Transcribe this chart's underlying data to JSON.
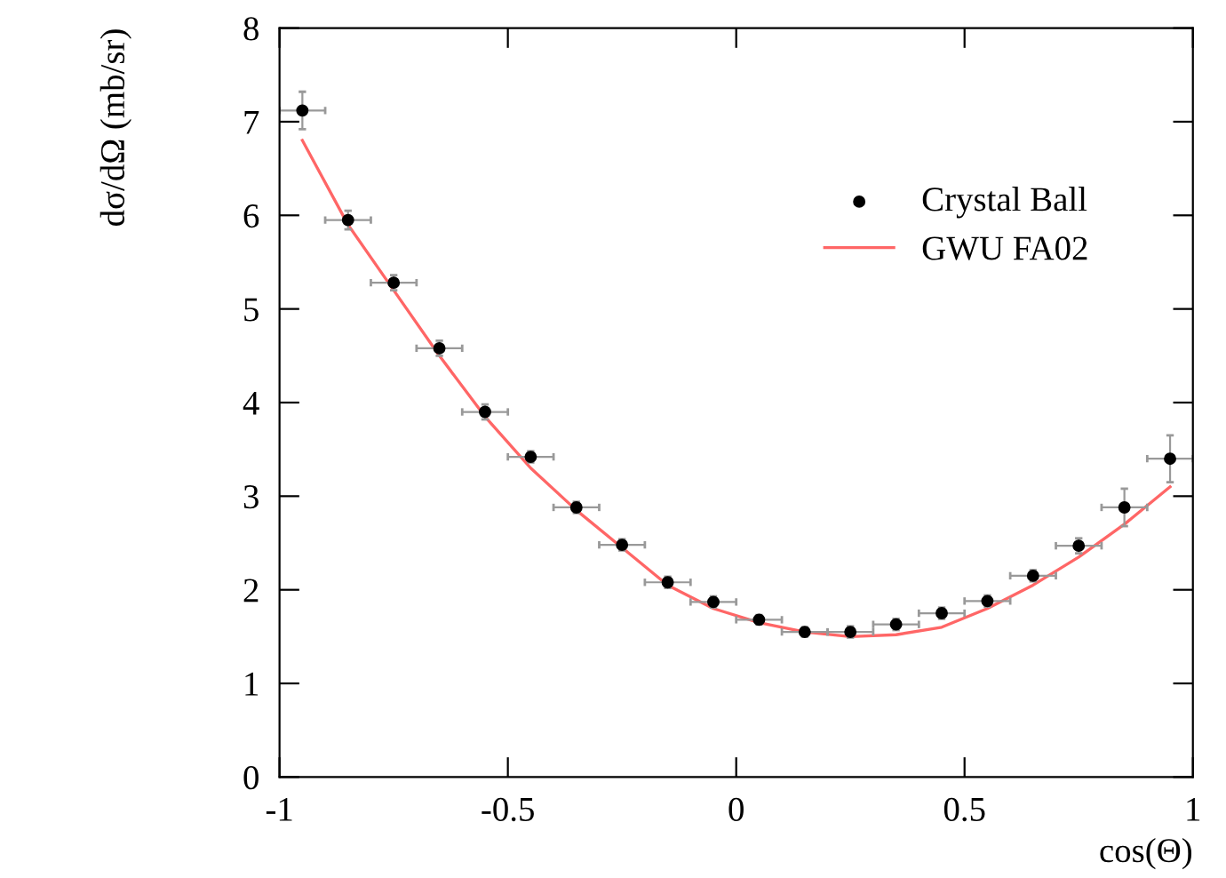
{
  "chart_data": {
    "type": "scatter",
    "xlabel": "cos(Θ)",
    "ylabel": "dσ/dΩ (mb/sr)",
    "xlim": [
      -1,
      1
    ],
    "ylim": [
      0,
      8
    ],
    "xticks": [
      -1,
      -0.5,
      0,
      0.5,
      1
    ],
    "yticks": [
      0,
      1,
      2,
      3,
      4,
      5,
      6,
      7,
      8
    ],
    "grid": false,
    "legend": "top right",
    "x": [
      -0.95,
      -0.85,
      -0.75,
      -0.65,
      -0.55,
      -0.45,
      -0.35,
      -0.25,
      -0.15,
      -0.05,
      0.05,
      0.15,
      0.25,
      0.35,
      0.45,
      0.55,
      0.65,
      0.75,
      0.85,
      0.95
    ],
    "series": [
      {
        "name": "Crystal Ball",
        "color": "#000000",
        "marker": "circle",
        "values": [
          7.12,
          5.95,
          5.28,
          4.58,
          3.9,
          3.42,
          2.88,
          2.48,
          2.08,
          1.87,
          1.68,
          1.55,
          1.55,
          1.63,
          1.75,
          1.88,
          2.15,
          2.47,
          2.88,
          3.4
        ],
        "errors": [
          0.2,
          0.1,
          0.08,
          0.08,
          0.08,
          0.06,
          0.06,
          0.06,
          0.06,
          0.06,
          0.05,
          0.05,
          0.06,
          0.06,
          0.06,
          0.06,
          0.06,
          0.08,
          0.2,
          0.25
        ],
        "xerrors": [
          0.05,
          0.05,
          0.05,
          0.05,
          0.05,
          0.05,
          0.05,
          0.05,
          0.05,
          0.05,
          0.05,
          0.05,
          0.05,
          0.05,
          0.05,
          0.05,
          0.05,
          0.05,
          0.05,
          0.05
        ]
      },
      {
        "name": "GWU FA02",
        "type": "line",
        "color": "#ff6666",
        "line_style": "solid",
        "values": [
          6.8,
          5.9,
          5.2,
          4.5,
          3.85,
          3.3,
          2.85,
          2.45,
          2.05,
          1.8,
          1.65,
          1.55,
          1.5,
          1.52,
          1.6,
          1.8,
          2.05,
          2.35,
          2.7,
          3.1
        ]
      }
    ]
  }
}
